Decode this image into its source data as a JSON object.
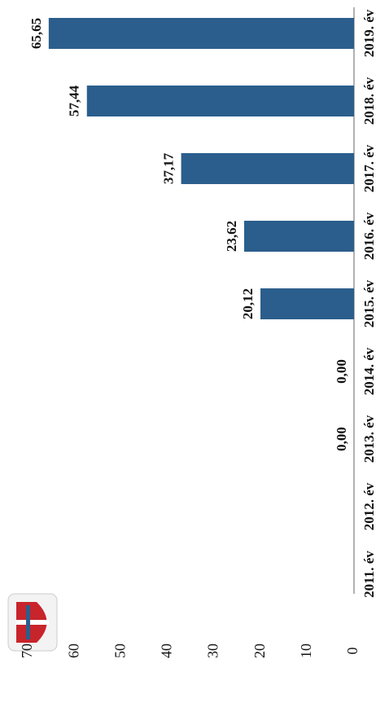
{
  "chart_data": {
    "type": "bar",
    "categories": [
      "2011. év",
      "2012. év",
      "2013. év",
      "2014. év",
      "2015. év",
      "2016. év",
      "2017. év",
      "2018. év",
      "2019. év"
    ],
    "values": [
      0,
      0,
      0,
      0,
      20.12,
      23.62,
      37.17,
      57.44,
      65.65
    ],
    "value_labels": [
      null,
      null,
      "0,00",
      "0,00",
      "20,12",
      "23,62",
      "37,17",
      "57,44",
      "65,65"
    ],
    "color": "#2b5e8c",
    "ylim": [
      0,
      70
    ],
    "yticks": [
      0,
      10,
      20,
      30,
      40,
      50,
      60,
      70
    ],
    "grid": false
  }
}
